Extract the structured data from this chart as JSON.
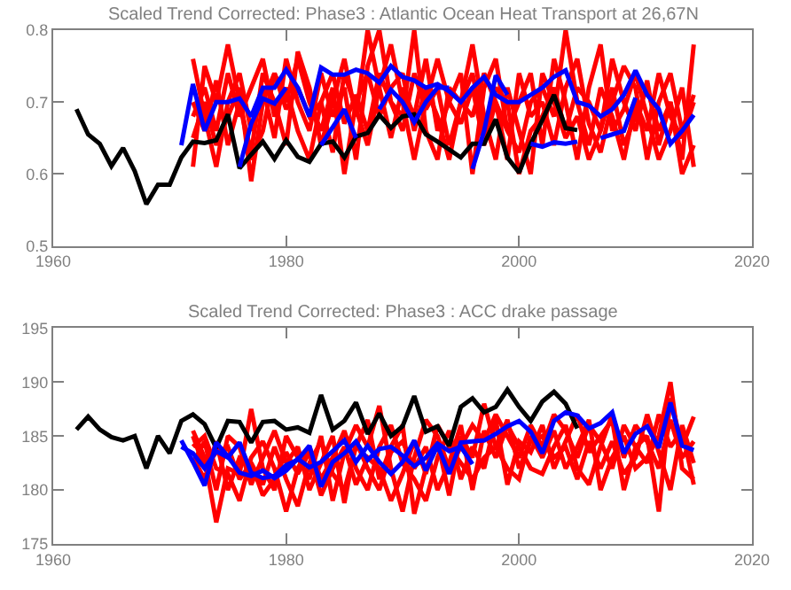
{
  "chart_data": [
    {
      "type": "line",
      "title": "Scaled Trend Corrected: Phase3 : Atlantic Ocean Heat Transport at 26,67N",
      "xlim": [
        1960,
        2020
      ],
      "xticks": [
        1960,
        1980,
        2000,
        2020
      ],
      "ylim": [
        0.5,
        0.8
      ],
      "yticks": [
        0.5,
        0.6,
        0.7,
        0.8
      ],
      "series": [
        {
          "color": "#ff0000",
          "x": [
            1972,
            1973,
            1974,
            1975,
            1976,
            1977,
            1978,
            1979,
            1980,
            1981,
            1982,
            1983,
            1984,
            1985,
            1986,
            1987,
            1988,
            1989,
            1990,
            1991,
            1992,
            1993,
            1994,
            1995,
            1996,
            1997,
            1998,
            1999,
            2000,
            2001,
            2002,
            2003,
            2004,
            2005,
            2006,
            2007,
            2008,
            2009,
            2010,
            2011,
            2012,
            2013,
            2014,
            2015
          ],
          "values": [
            0.76,
            0.68,
            0.61,
            0.7,
            0.74,
            0.66,
            0.72,
            0.65,
            0.76,
            0.7,
            0.66,
            0.74,
            0.68,
            0.72,
            0.62,
            0.75,
            0.8,
            0.7,
            0.66,
            0.74,
            0.69,
            0.72,
            0.64,
            0.7,
            0.78,
            0.68,
            0.62,
            0.72,
            0.66,
            0.6,
            0.74,
            0.7,
            0.65,
            0.68,
            0.62,
            0.66,
            0.76,
            0.7,
            0.66,
            0.73,
            0.64,
            0.7,
            0.62,
            0.78
          ]
        },
        {
          "color": "#ff0000",
          "x": [
            1972,
            1973,
            1974,
            1975,
            1976,
            1977,
            1978,
            1979,
            1980,
            1981,
            1982,
            1983,
            1984,
            1985,
            1986,
            1987,
            1988,
            1989,
            1990,
            1991,
            1992,
            1993,
            1994,
            1995,
            1996,
            1997,
            1998,
            1999,
            2000,
            2001,
            2002,
            2003,
            2004,
            2005,
            2006,
            2007,
            2008,
            2009,
            2010,
            2011,
            2012,
            2013,
            2014,
            2015
          ],
          "values": [
            0.61,
            0.75,
            0.7,
            0.78,
            0.7,
            0.63,
            0.74,
            0.7,
            0.64,
            0.77,
            0.72,
            0.64,
            0.7,
            0.76,
            0.68,
            0.8,
            0.72,
            0.65,
            0.72,
            0.68,
            0.76,
            0.66,
            0.7,
            0.74,
            0.6,
            0.72,
            0.76,
            0.66,
            0.7,
            0.74,
            0.64,
            0.76,
            0.7,
            0.62,
            0.72,
            0.78,
            0.66,
            0.69,
            0.74,
            0.68,
            0.62,
            0.66,
            0.72,
            0.61
          ]
        },
        {
          "color": "#ff0000",
          "x": [
            1972,
            1973,
            1974,
            1975,
            1976,
            1977,
            1978,
            1979,
            1980,
            1981,
            1982,
            1983,
            1984,
            1985,
            1986,
            1987,
            1988,
            1989,
            1990,
            1991,
            1992,
            1993,
            1994,
            1995,
            1996,
            1997,
            1998,
            1999,
            2000,
            2001,
            2002,
            2003,
            2004,
            2005,
            2006,
            2007,
            2008,
            2009,
            2010,
            2011,
            2012,
            2013,
            2014,
            2015
          ],
          "values": [
            0.65,
            0.7,
            0.64,
            0.68,
            0.72,
            0.59,
            0.7,
            0.74,
            0.69,
            0.72,
            0.68,
            0.7,
            0.63,
            0.74,
            0.69,
            0.64,
            0.72,
            0.78,
            0.7,
            0.62,
            0.7,
            0.76,
            0.7,
            0.67,
            0.72,
            0.64,
            0.7,
            0.62,
            0.74,
            0.68,
            0.7,
            0.64,
            0.72,
            0.76,
            0.67,
            0.63,
            0.7,
            0.75,
            0.72,
            0.62,
            0.7,
            0.74,
            0.66,
            0.71
          ]
        },
        {
          "color": "#ff0000",
          "x": [
            1972,
            1973,
            1974,
            1975,
            1976,
            1977,
            1978,
            1979,
            1980,
            1981,
            1982,
            1983,
            1984,
            1985,
            1986,
            1987,
            1988,
            1989,
            1990,
            1991,
            1992,
            1993,
            1994,
            1995,
            1996,
            1997,
            1998,
            1999,
            2000,
            2001,
            2002,
            2003,
            2004,
            2005,
            2006,
            2007,
            2008,
            2009,
            2010,
            2011,
            2012,
            2013,
            2014,
            2015
          ],
          "values": [
            0.68,
            0.72,
            0.66,
            0.74,
            0.68,
            0.72,
            0.76,
            0.68,
            0.72,
            0.66,
            0.62,
            0.7,
            0.74,
            0.67,
            0.71,
            0.66,
            0.74,
            0.7,
            0.68,
            0.8,
            0.66,
            0.62,
            0.72,
            0.7,
            0.68,
            0.74,
            0.7,
            0.66,
            0.63,
            0.7,
            0.72,
            0.68,
            0.8,
            0.7,
            0.64,
            0.72,
            0.68,
            0.62,
            0.7,
            0.66,
            0.74,
            0.68,
            0.65,
            0.7
          ]
        },
        {
          "color": "#ff0000",
          "x": [
            1972,
            1973,
            1974,
            1975,
            1976,
            1977,
            1978,
            1979,
            1980,
            1981,
            1982,
            1983,
            1984,
            1985,
            1986,
            1987,
            1988,
            1989,
            1990,
            1991,
            1992,
            1993,
            1994,
            1995,
            1996,
            1997,
            1998,
            1999,
            2000,
            2001,
            2002,
            2003,
            2004,
            2005,
            2006,
            2007,
            2008,
            2009,
            2010,
            2011,
            2012,
            2013,
            2014,
            2015
          ],
          "values": [
            0.7,
            0.66,
            0.73,
            0.64,
            0.7,
            0.62,
            0.66,
            0.74,
            0.7,
            0.76,
            0.7,
            0.66,
            0.72,
            0.6,
            0.7,
            0.74,
            0.68,
            0.72,
            0.74,
            0.66,
            0.72,
            0.68,
            0.62,
            0.7,
            0.74,
            0.66,
            0.72,
            0.7,
            0.6,
            0.66,
            0.68,
            0.72,
            0.66,
            0.72,
            0.7,
            0.66,
            0.72,
            0.64,
            0.68,
            0.72,
            0.66,
            0.7,
            0.6,
            0.64
          ]
        },
        {
          "color": "#000000",
          "x": [
            1962,
            1963,
            1964,
            1965,
            1966,
            1967,
            1968,
            1969,
            1970,
            1971,
            1972,
            1973,
            1974,
            1975,
            1976,
            1977,
            1978,
            1979,
            1980,
            1981,
            1982,
            1983,
            1984,
            1985,
            1986,
            1987,
            1988,
            1989,
            1990,
            1991,
            1992,
            1993,
            1994,
            1995,
            1996,
            1997,
            1998,
            1999,
            2000,
            2001,
            2002,
            2003,
            2004,
            2005
          ],
          "values": [
            0.69,
            0.655,
            0.642,
            0.611,
            0.636,
            0.604,
            0.558,
            0.585,
            0.585,
            0.623,
            0.645,
            0.643,
            0.647,
            0.683,
            0.608,
            0.627,
            0.645,
            0.621,
            0.647,
            0.624,
            0.617,
            0.642,
            0.645,
            0.623,
            0.652,
            0.657,
            0.682,
            0.664,
            0.68,
            0.683,
            0.655,
            0.645,
            0.634,
            0.623,
            0.642,
            0.642,
            0.676,
            0.623,
            0.602,
            0.642,
            0.675,
            0.71,
            0.664,
            0.661
          ]
        },
        {
          "color": "#0000ff",
          "x": [
            1971,
            1972,
            1973,
            1974,
            1975,
            1976,
            1977,
            1978,
            1979,
            1980,
            1981,
            1982,
            1983,
            1984,
            1985,
            1986,
            1987,
            1988,
            1989,
            1990,
            1991,
            1992,
            1993,
            1994,
            1995,
            1996,
            1997,
            1998,
            1999,
            2000,
            2001,
            2002,
            2003,
            2004,
            2005,
            2006,
            2007,
            2008,
            2009,
            2010,
            2011,
            2012,
            2013,
            2014,
            2015
          ],
          "values": [
            0.64,
            0.725,
            0.66,
            0.7,
            0.7,
            0.705,
            0.68,
            0.72,
            0.72,
            0.745,
            0.72,
            0.68,
            0.748,
            0.738,
            0.738,
            0.745,
            0.74,
            0.727,
            0.75,
            0.735,
            0.73,
            0.72,
            0.725,
            0.715,
            0.7,
            0.72,
            0.735,
            0.71,
            0.7,
            0.7,
            0.71,
            0.72,
            0.735,
            0.744,
            0.7,
            0.695,
            0.68,
            0.69,
            0.71,
            0.744,
            0.71,
            0.69,
            0.642,
            0.66,
            0.682
          ]
        },
        {
          "color": "#0000ff",
          "x": [
            1976,
            1977,
            1978,
            1979,
            1980,
            1981,
            1982,
            1983,
            1984,
            1985,
            1986,
            1987,
            1988,
            1989,
            1990,
            1991,
            1992,
            1993,
            1994,
            1995,
            1996,
            1997,
            1998,
            1999,
            2000,
            2001,
            2002,
            2003,
            2004,
            2005,
            2006,
            2007,
            2008,
            2009,
            2010
          ],
          "values": [
            0.61,
            0.67,
            0.705,
            0.698,
            0.72,
            null,
            null,
            0.64,
            0.665,
            0.69,
            0.65,
            null,
            0.69,
            0.717,
            0.7,
            0.672,
            0.7,
            0.72,
            0.72,
            null,
            0.607,
            0.66,
            0.737,
            0.71,
            null,
            0.642,
            0.638,
            0.644,
            0.642,
            0.645,
            null,
            0.65,
            0.655,
            0.66,
            0.706
          ]
        }
      ]
    },
    {
      "type": "line",
      "title": "Scaled Trend Corrected: Phase3 : ACC drake passage",
      "xlim": [
        1960,
        2020
      ],
      "xticks": [
        1960,
        1980,
        2000,
        2020
      ],
      "ylim": [
        175,
        195
      ],
      "yticks": [
        175,
        180,
        185,
        190,
        195
      ],
      "series": [
        {
          "color": "#ff0000",
          "x": [
            1972,
            1973,
            1974,
            1975,
            1976,
            1977,
            1978,
            1979,
            1980,
            1981,
            1982,
            1983,
            1984,
            1985,
            1986,
            1987,
            1988,
            1989,
            1990,
            1991,
            1992,
            1993,
            1994,
            1995,
            1996,
            1997,
            1998,
            1999,
            2000,
            2001,
            2002,
            2003,
            2004,
            2005,
            2006,
            2007,
            2008,
            2009,
            2010,
            2011,
            2012,
            2013,
            2014,
            2015
          ],
          "values": [
            185.5,
            183.0,
            177.0,
            182.0,
            181.5,
            187.5,
            182.0,
            180.0,
            185.0,
            183.0,
            181.0,
            185.0,
            179.0,
            183.5,
            186.0,
            184.0,
            187.8,
            182.0,
            178.0,
            183.0,
            186.5,
            185.0,
            182.0,
            184.0,
            186.0,
            184.5,
            187.0,
            185.0,
            183.0,
            186.0,
            184.0,
            187.0,
            185.5,
            183.0,
            186.0,
            184.5,
            182.0,
            186.0,
            184.0,
            185.0,
            178.0,
            188.5,
            184.0,
            186.8
          ]
        },
        {
          "color": "#ff0000",
          "x": [
            1972,
            1973,
            1974,
            1975,
            1976,
            1977,
            1978,
            1979,
            1980,
            1981,
            1982,
            1983,
            1984,
            1985,
            1986,
            1987,
            1988,
            1989,
            1990,
            1991,
            1992,
            1993,
            1994,
            1995,
            1996,
            1997,
            1998,
            1999,
            2000,
            2001,
            2002,
            2003,
            2004,
            2005,
            2006,
            2007,
            2008,
            2009,
            2010,
            2011,
            2012,
            2013,
            2014,
            2015
          ],
          "values": [
            183.0,
            181.0,
            184.5,
            180.0,
            183.0,
            182.5,
            180.5,
            184.0,
            181.0,
            178.5,
            182.5,
            184.5,
            181.5,
            180.0,
            184.0,
            186.5,
            181.0,
            184.0,
            186.0,
            177.8,
            182.0,
            184.5,
            179.5,
            185.0,
            183.0,
            188.0,
            184.0,
            182.0,
            181.0,
            185.0,
            183.0,
            185.5,
            182.0,
            184.0,
            186.5,
            180.0,
            183.0,
            185.0,
            182.0,
            183.0,
            185.0,
            190.0,
            182.0,
            181.0
          ]
        },
        {
          "color": "#ff0000",
          "x": [
            1972,
            1973,
            1974,
            1975,
            1976,
            1977,
            1978,
            1979,
            1980,
            1981,
            1982,
            1983,
            1984,
            1985,
            1986,
            1987,
            1988,
            1989,
            1990,
            1991,
            1992,
            1993,
            1994,
            1995,
            1996,
            1997,
            1998,
            1999,
            2000,
            2001,
            2002,
            2003,
            2004,
            2005,
            2006,
            2007,
            2008,
            2009,
            2010,
            2011,
            2012,
            2013,
            2014,
            2015
          ],
          "values": [
            184.0,
            185.0,
            182.0,
            181.5,
            179.0,
            183.0,
            184.5,
            182.0,
            178.0,
            182.0,
            184.0,
            181.0,
            183.0,
            185.5,
            182.0,
            180.0,
            184.0,
            186.0,
            182.5,
            181.0,
            179.0,
            183.0,
            185.5,
            181.0,
            184.0,
            182.0,
            186.5,
            180.5,
            184.5,
            183.5,
            186.0,
            182.0,
            184.5,
            187.0,
            183.5,
            185.0,
            186.5,
            180.0,
            184.0,
            182.5,
            187.0,
            184.0,
            185.5,
            180.5
          ]
        },
        {
          "color": "#ff0000",
          "x": [
            1972,
            1973,
            1974,
            1975,
            1976,
            1977,
            1978,
            1979,
            1980,
            1981,
            1982,
            1983,
            1984,
            1985,
            1986,
            1987,
            1988,
            1989,
            1990,
            1991,
            1992,
            1993,
            1994,
            1995,
            1996,
            1997,
            1998,
            1999,
            2000,
            2001,
            2002,
            2003,
            2004,
            2005,
            2006,
            2007,
            2008,
            2009,
            2010,
            2011,
            2012,
            2013,
            2014,
            2015
          ],
          "values": [
            182.5,
            184.5,
            180.0,
            185.0,
            184.0,
            180.5,
            183.0,
            185.5,
            182.5,
            184.0,
            180.0,
            182.5,
            185.0,
            178.8,
            184.5,
            182.0,
            180.0,
            183.5,
            184.5,
            182.0,
            184.0,
            180.0,
            182.5,
            186.0,
            180.0,
            185.5,
            183.0,
            186.0,
            184.0,
            182.0,
            181.5,
            184.0,
            186.0,
            182.0,
            180.5,
            184.0,
            187.0,
            183.0,
            186.0,
            184.5,
            182.0,
            186.5,
            183.0,
            184.5
          ]
        },
        {
          "color": "#ff0000",
          "x": [
            1972,
            1973,
            1974,
            1975,
            1976,
            1977,
            1978,
            1979,
            1980,
            1981,
            1982,
            1983,
            1984,
            1985,
            1986,
            1987,
            1988,
            1989,
            1990,
            1991,
            1992,
            1993,
            1994,
            1995,
            1996,
            1997,
            1998,
            1999,
            2000,
            2001,
            2002,
            2003,
            2004,
            2005,
            2006,
            2007,
            2008,
            2009,
            2010,
            2011,
            2012,
            2013,
            2014,
            2015
          ],
          "values": [
            185.0,
            182.0,
            183.5,
            184.0,
            181.0,
            182.5,
            179.5,
            181.0,
            183.5,
            181.5,
            183.5,
            179.5,
            182.0,
            184.0,
            180.5,
            183.0,
            182.0,
            179.0,
            181.5,
            184.5,
            181.5,
            186.0,
            184.0,
            182.5,
            181.0,
            183.0,
            184.0,
            186.5,
            182.0,
            184.5,
            185.0,
            183.0,
            184.0,
            181.0,
            184.5,
            182.0,
            184.5,
            181.5,
            183.0,
            187.0,
            183.5,
            180.0,
            186.0,
            182.5
          ]
        },
        {
          "color": "#000000",
          "x": [
            1962,
            1963,
            1964,
            1965,
            1966,
            1967,
            1968,
            1969,
            1970,
            1971,
            1972,
            1973,
            1974,
            1975,
            1976,
            1977,
            1978,
            1979,
            1980,
            1981,
            1982,
            1983,
            1984,
            1985,
            1986,
            1987,
            1988,
            1989,
            1990,
            1991,
            1992,
            1993,
            1994,
            1995,
            1996,
            1997,
            1998,
            1999,
            2000,
            2001,
            2002,
            2003,
            2004,
            2005
          ],
          "values": [
            185.6,
            186.8,
            185.6,
            184.9,
            184.6,
            185.0,
            182.0,
            185.0,
            183.4,
            186.4,
            187.0,
            186.1,
            183.9,
            186.4,
            186.3,
            184.4,
            186.3,
            186.4,
            185.6,
            185.8,
            185.3,
            188.8,
            185.6,
            186.4,
            188.1,
            185.2,
            187.1,
            185.0,
            185.9,
            188.7,
            185.4,
            185.9,
            184.1,
            187.7,
            188.5,
            187.2,
            187.7,
            189.3,
            187.7,
            186.4,
            188.2,
            189.1,
            188.0,
            185.7
          ]
        },
        {
          "color": "#0000ff",
          "x": [
            1971,
            1972,
            1973,
            1974,
            1975,
            1976,
            1977,
            1978,
            1979,
            1980,
            1981,
            1982,
            1983,
            1984,
            1985,
            1986,
            1987,
            1988,
            1989,
            1990,
            1991,
            1992,
            1993,
            1994,
            1995,
            1996,
            1997,
            1998,
            1999,
            2000,
            2001,
            2002,
            2003,
            2004,
            2005,
            2006,
            2007,
            2008,
            2009,
            2010,
            2011,
            2012,
            2013,
            2014,
            2015
          ],
          "values": [
            184.6,
            182.6,
            180.4,
            184.4,
            183.1,
            181.6,
            181.3,
            181.8,
            181.1,
            181.8,
            182.9,
            182.1,
            182.6,
            183.6,
            184.6,
            182.6,
            184.1,
            182.6,
            181.5,
            182.6,
            184.6,
            181.8,
            184.1,
            181.5,
            184.4,
            184.5,
            184.6,
            185.2,
            185.9,
            186.4,
            185.4,
            183.4,
            186.4,
            187.2,
            186.9,
            185.7,
            186.2,
            187.2,
            183.4,
            185.2,
            185.9,
            183.9,
            188.1,
            184.1,
            183.7
          ]
        },
        {
          "color": "#0000ff",
          "x": [
            1971,
            1972,
            1973,
            1974,
            1975,
            1976,
            1977,
            1978,
            1979,
            1980,
            1981,
            1982,
            1983,
            1984,
            1985,
            1986,
            1987,
            1988,
            1989,
            1990,
            1991,
            1992,
            1993,
            1994,
            1995,
            1996
          ],
          "values": [
            184.0,
            183.4,
            182.0,
            183.6,
            183.0,
            184.4,
            181.6,
            181.1,
            181.3,
            182.3,
            182.8,
            184.1,
            180.3,
            182.6,
            183.4,
            184.5,
            182.8,
            183.8,
            184.0,
            183.2,
            182.2,
            183.0,
            184.3,
            183.6,
            184.0,
            182.4
          ]
        }
      ]
    }
  ]
}
